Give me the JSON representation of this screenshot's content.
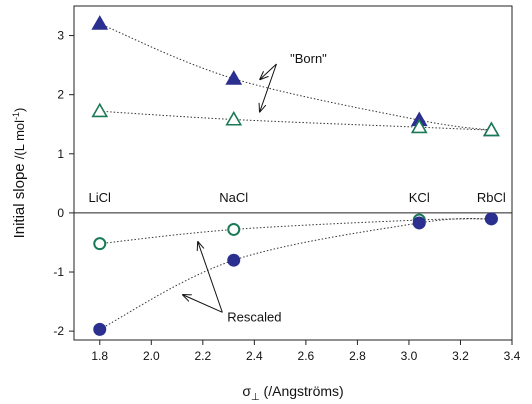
{
  "chart_data": {
    "type": "scatter",
    "xlabel": "σ",
    "xlabel_sub": "⊥",
    "xlabel_units": "(/Angströms)",
    "ylabel": "Initial slope",
    "ylabel_units": "/(L mol",
    "ylabel_exp": "-1",
    "ylabel_close": ")",
    "xlim": [
      1.7,
      3.4
    ],
    "ylim": [
      -2.15,
      3.5
    ],
    "xticks": [
      1.8,
      2.0,
      2.2,
      2.4,
      2.6,
      2.8,
      3.0,
      3.2,
      3.4
    ],
    "xtick_labels": [
      "1.8",
      "2.0",
      "2.2",
      "2.4",
      "2.6",
      "2.8",
      "3.0",
      "3.2",
      "3.4"
    ],
    "yticks": [
      -2,
      -1,
      0,
      1,
      2,
      3
    ],
    "ytick_labels": [
      "-2",
      "-1",
      "0",
      "1",
      "2",
      "3"
    ],
    "zero_line": true,
    "categories": [
      {
        "label": "LiCl",
        "x": 1.8
      },
      {
        "label": "NaCl",
        "x": 2.32
      },
      {
        "label": "KCl",
        "x": 3.04
      },
      {
        "label": "RbCl",
        "x": 3.32
      }
    ],
    "series": [
      {
        "marker": "triangle",
        "filled": true,
        "color": "#2b2f8f",
        "x": [
          1.8,
          2.32,
          3.04,
          3.32
        ],
        "y": [
          3.2,
          2.27,
          1.57,
          1.4
        ]
      },
      {
        "marker": "triangle",
        "filled": false,
        "color": "#1a7a55",
        "x": [
          1.8,
          2.32,
          3.04,
          3.32
        ],
        "y": [
          1.72,
          1.58,
          1.45,
          1.4
        ]
      },
      {
        "marker": "circle",
        "filled": false,
        "color": "#1a7a55",
        "x": [
          1.8,
          2.32,
          3.04,
          3.32
        ],
        "y": [
          -0.52,
          -0.28,
          -0.12,
          -0.1
        ]
      },
      {
        "marker": "circle",
        "filled": true,
        "color": "#2b2f8f",
        "x": [
          1.8,
          2.32,
          3.04,
          3.32
        ],
        "y": [
          -1.97,
          -0.8,
          -0.17,
          -0.1
        ]
      }
    ],
    "annotations": [
      {
        "text": "\"Born\"",
        "text_x": 2.61,
        "text_y": 2.62,
        "arrows": [
          {
            "x": 2.42,
            "y": 2.25
          },
          {
            "x": 2.42,
            "y": 1.7
          }
        ]
      },
      {
        "text": "Rescaled",
        "text_x": 2.4,
        "text_y": -1.75,
        "arrows": [
          {
            "x": 2.18,
            "y": -0.48
          },
          {
            "x": 2.12,
            "y": -1.38
          }
        ]
      }
    ]
  }
}
